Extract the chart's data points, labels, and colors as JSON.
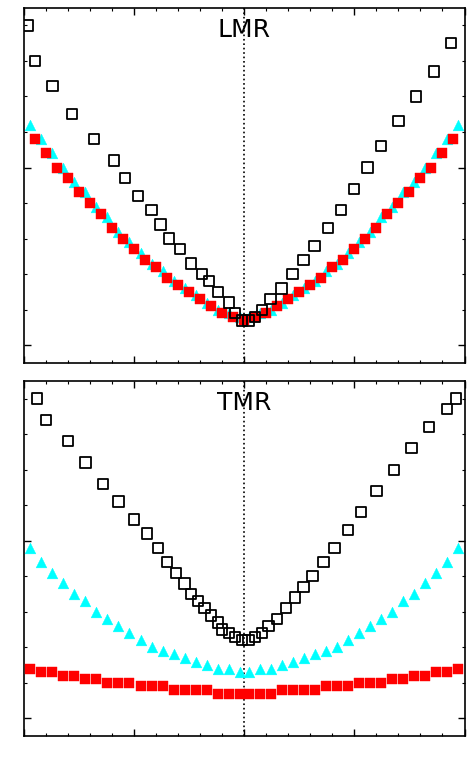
{
  "title_top": "LMR",
  "title_bottom": "TMR",
  "title_fontsize": 18,
  "background_color": "#ffffff",
  "dotted_line_x": 0.0,
  "panel_top": {
    "x_lim": [
      -10,
      10
    ],
    "y_lim": [
      -5,
      95
    ],
    "squares_x": [
      -9.8,
      -9.5,
      -8.7,
      -7.8,
      -6.8,
      -5.9,
      -5.4,
      -4.8,
      -4.2,
      -3.8,
      -3.4,
      -2.9,
      -2.4,
      -1.9,
      -1.6,
      -1.2,
      -0.7,
      -0.4,
      -0.1,
      0.2,
      0.5,
      0.8,
      1.2,
      1.7,
      2.2,
      2.7,
      3.2,
      3.8,
      4.4,
      5.0,
      5.6,
      6.2,
      7.0,
      7.8,
      8.6,
      9.4
    ],
    "squares_y": [
      90,
      80,
      73,
      65,
      58,
      52,
      47,
      42,
      38,
      34,
      30,
      27,
      23,
      20,
      18,
      15,
      12,
      9,
      7,
      7,
      8,
      10,
      13,
      16,
      20,
      24,
      28,
      33,
      38,
      44,
      50,
      56,
      63,
      70,
      77,
      85
    ],
    "cyan_x": [
      -9.7,
      -9.2,
      -8.7,
      -8.2,
      -7.7,
      -7.2,
      -6.7,
      -6.2,
      -5.7,
      -5.2,
      -4.7,
      -4.2,
      -3.7,
      -3.2,
      -2.7,
      -2.2,
      -1.7,
      -1.2,
      -0.7,
      -0.2,
      0.2,
      0.7,
      1.2,
      1.7,
      2.2,
      2.7,
      3.2,
      3.7,
      4.2,
      4.7,
      5.2,
      5.7,
      6.2,
      6.7,
      7.2,
      7.7,
      8.2,
      8.7,
      9.2,
      9.7
    ],
    "cyan_y": [
      62,
      58,
      54,
      50,
      46,
      43,
      39,
      36,
      32,
      29,
      26,
      23,
      21,
      18,
      16,
      14,
      12,
      10,
      9,
      8,
      8,
      9,
      10,
      12,
      14,
      16,
      18,
      21,
      23,
      26,
      29,
      32,
      36,
      39,
      43,
      46,
      50,
      54,
      58,
      62
    ],
    "red_x": [
      -9.5,
      -9.0,
      -8.5,
      -8.0,
      -7.5,
      -7.0,
      -6.5,
      -6.0,
      -5.5,
      -5.0,
      -4.5,
      -4.0,
      -3.5,
      -3.0,
      -2.5,
      -2.0,
      -1.5,
      -1.0,
      -0.5,
      0.0,
      0.5,
      1.0,
      1.5,
      2.0,
      2.5,
      3.0,
      3.5,
      4.0,
      4.5,
      5.0,
      5.5,
      6.0,
      6.5,
      7.0,
      7.5,
      8.0,
      8.5,
      9.0,
      9.5
    ],
    "red_y": [
      58,
      54,
      50,
      47,
      43,
      40,
      37,
      33,
      30,
      27,
      24,
      22,
      19,
      17,
      15,
      13,
      11,
      9,
      8,
      7,
      8,
      9,
      11,
      13,
      15,
      17,
      19,
      22,
      24,
      27,
      30,
      33,
      37,
      40,
      43,
      47,
      50,
      54,
      58
    ]
  },
  "panel_bottom": {
    "x_lim": [
      -10,
      10
    ],
    "y_lim": [
      -5,
      95
    ],
    "squares_x": [
      -9.4,
      -9.0,
      -8.0,
      -7.2,
      -6.4,
      -5.7,
      -5.0,
      -4.4,
      -3.9,
      -3.5,
      -3.1,
      -2.7,
      -2.4,
      -2.1,
      -1.8,
      -1.5,
      -1.2,
      -1.0,
      -0.7,
      -0.4,
      -0.1,
      0.2,
      0.5,
      0.8,
      1.1,
      1.5,
      1.9,
      2.3,
      2.7,
      3.1,
      3.6,
      4.1,
      4.7,
      5.3,
      6.0,
      6.8,
      7.6,
      8.4,
      9.2,
      9.6
    ],
    "squares_y": [
      90,
      84,
      78,
      72,
      66,
      61,
      56,
      52,
      48,
      44,
      41,
      38,
      35,
      33,
      31,
      29,
      27,
      25,
      24,
      23,
      22,
      22,
      23,
      24,
      26,
      28,
      31,
      34,
      37,
      40,
      44,
      48,
      53,
      58,
      64,
      70,
      76,
      82,
      87,
      90
    ],
    "cyan_x": [
      -9.7,
      -9.2,
      -8.7,
      -8.2,
      -7.7,
      -7.2,
      -6.7,
      -6.2,
      -5.7,
      -5.2,
      -4.7,
      -4.2,
      -3.7,
      -3.2,
      -2.7,
      -2.2,
      -1.7,
      -1.2,
      -0.7,
      -0.2,
      0.2,
      0.7,
      1.2,
      1.7,
      2.2,
      2.7,
      3.2,
      3.7,
      4.2,
      4.7,
      5.2,
      5.7,
      6.2,
      6.7,
      7.2,
      7.7,
      8.2,
      8.7,
      9.2,
      9.7
    ],
    "cyan_y": [
      48,
      44,
      41,
      38,
      35,
      33,
      30,
      28,
      26,
      24,
      22,
      20,
      19,
      18,
      17,
      16,
      15,
      14,
      14,
      13,
      13,
      14,
      14,
      15,
      16,
      17,
      18,
      19,
      20,
      22,
      24,
      26,
      28,
      30,
      33,
      35,
      38,
      41,
      44,
      48
    ],
    "red_x": [
      -9.7,
      -9.2,
      -8.7,
      -8.2,
      -7.7,
      -7.2,
      -6.7,
      -6.2,
      -5.7,
      -5.2,
      -4.7,
      -4.2,
      -3.7,
      -3.2,
      -2.7,
      -2.2,
      -1.7,
      -1.2,
      -0.7,
      -0.2,
      0.2,
      0.7,
      1.2,
      1.7,
      2.2,
      2.7,
      3.2,
      3.7,
      4.2,
      4.7,
      5.2,
      5.7,
      6.2,
      6.7,
      7.2,
      7.7,
      8.2,
      8.7,
      9.2,
      9.7
    ],
    "red_y": [
      14,
      13,
      13,
      12,
      12,
      11,
      11,
      10,
      10,
      10,
      9,
      9,
      9,
      8,
      8,
      8,
      8,
      7,
      7,
      7,
      7,
      7,
      7,
      8,
      8,
      8,
      8,
      9,
      9,
      9,
      10,
      10,
      10,
      11,
      11,
      12,
      12,
      13,
      13,
      14
    ]
  },
  "cyan_color": "#00FFFF",
  "red_color": "#FF0000",
  "square_edgecolor": "#000000",
  "marker_size_square": 55,
  "marker_size_tri": 60,
  "marker_size_red": 55,
  "lw_square": 1.3
}
